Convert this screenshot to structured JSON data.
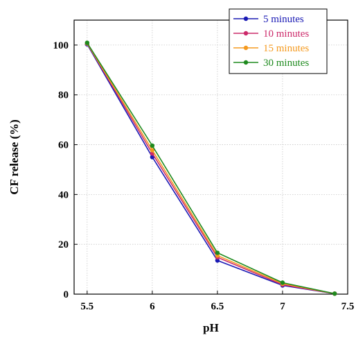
{
  "chart_data": {
    "type": "line",
    "title": "",
    "xlabel": "pH",
    "ylabel": "CF release  (%)",
    "xlim": [
      5.4,
      7.5
    ],
    "ylim": [
      0,
      110
    ],
    "x_ticks": [
      5.5,
      6,
      6.5,
      7,
      7.5
    ],
    "x_tick_labels": [
      "5.5",
      "6",
      "6.5",
      "7",
      "7.5"
    ],
    "y_ticks": [
      0,
      20,
      40,
      60,
      80,
      100
    ],
    "y_tick_labels": [
      "0",
      "20",
      "40",
      "60",
      "80",
      "100"
    ],
    "grid": true,
    "legend_position": "top-right",
    "x": [
      5.5,
      6,
      6.5,
      7,
      7.4
    ],
    "series": [
      {
        "name": "5 minutes",
        "color": "#1a1ab4",
        "values": [
          100.3,
          55.0,
          13.5,
          3.5,
          0.2
        ]
      },
      {
        "name": "10 minutes",
        "color": "#cc2a6a",
        "values": [
          100.6,
          56.5,
          14.8,
          3.8,
          0.2
        ]
      },
      {
        "name": "15 minutes",
        "color": "#f59a1f",
        "values": [
          100.7,
          57.8,
          15.5,
          4.2,
          0.2
        ]
      },
      {
        "name": "30 minutes",
        "color": "#1e8a1e",
        "values": [
          100.9,
          59.6,
          16.6,
          4.6,
          0.2
        ]
      }
    ]
  }
}
